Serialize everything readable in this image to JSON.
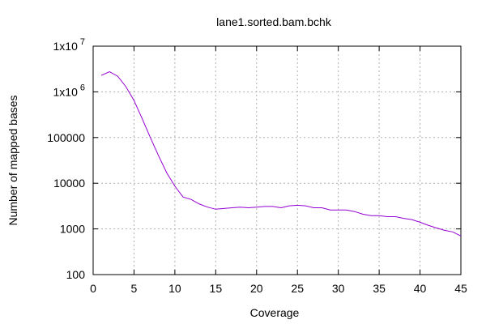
{
  "chart_data": {
    "type": "line",
    "title": "lane1.sorted.bam.bchk",
    "xlabel": "Coverage",
    "ylabel": "Number of mapped bases",
    "xlim": [
      0,
      45
    ],
    "ylim": [
      100,
      10000000
    ],
    "y_scale": "log",
    "grid": true,
    "legend": "none",
    "x_ticks": [
      0,
      5,
      10,
      15,
      20,
      25,
      30,
      35,
      40,
      45
    ],
    "y_ticks": [
      {
        "value": 100,
        "label": "100"
      },
      {
        "value": 1000,
        "label": "1000"
      },
      {
        "value": 10000,
        "label": "10000"
      },
      {
        "value": 100000,
        "label": "100000"
      },
      {
        "value": 1000000,
        "label": "1x10",
        "exp": "6"
      },
      {
        "value": 10000000,
        "label": "1x10",
        "exp": "7"
      }
    ],
    "series": [
      {
        "color": "#9400d3",
        "x": [
          1,
          2,
          3,
          4,
          5,
          6,
          7,
          8,
          9,
          10,
          11,
          12,
          13,
          14,
          15,
          16,
          17,
          18,
          19,
          20,
          21,
          22,
          23,
          24,
          25,
          26,
          27,
          28,
          29,
          30,
          31,
          32,
          33,
          34,
          35,
          36,
          37,
          38,
          39,
          40,
          41,
          42,
          43,
          44,
          45
        ],
        "y": [
          2300000,
          2750000,
          2200000,
          1300000,
          650000,
          260000,
          100000,
          40000,
          17000,
          8600,
          5000,
          4400,
          3500,
          3000,
          2700,
          2800,
          2900,
          3000,
          2900,
          3000,
          3100,
          3100,
          2900,
          3200,
          3300,
          3200,
          2900,
          2900,
          2600,
          2600,
          2600,
          2400,
          2100,
          1950,
          1950,
          1850,
          1850,
          1700,
          1600,
          1400,
          1200,
          1050,
          930,
          860,
          700
        ]
      }
    ]
  }
}
